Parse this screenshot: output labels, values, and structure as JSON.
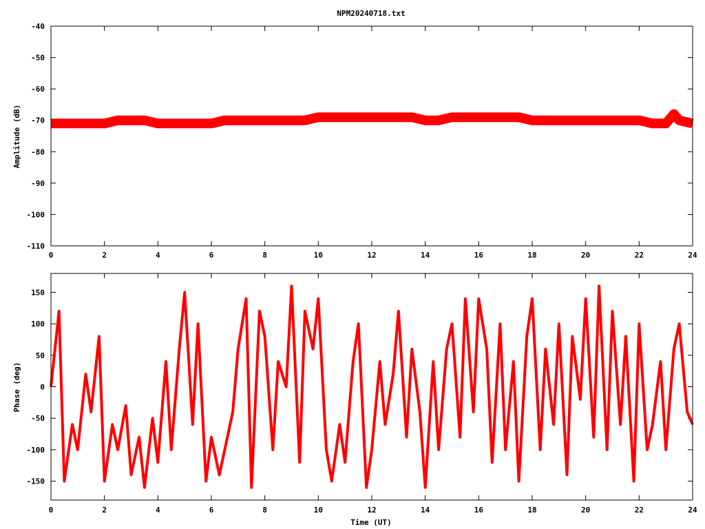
{
  "chart_data": [
    {
      "type": "line",
      "title": "NPM20240718.txt",
      "xlabel": "",
      "ylabel": "Amplitude (dB)",
      "xlim": [
        0,
        24
      ],
      "ylim": [
        -110,
        -40
      ],
      "x_ticks": [
        "0",
        "2",
        "4",
        "6",
        "8",
        "10",
        "12",
        "14",
        "16",
        "18",
        "20",
        "22",
        "24"
      ],
      "y_ticks": [
        "-40",
        "-50",
        "-60",
        "-70",
        "-80",
        "-90",
        "-100",
        "-110"
      ],
      "series_color": "#ff0000",
      "series": [
        {
          "name": "",
          "x": [
            0,
            0.5,
            1,
            1.5,
            2,
            2.5,
            3,
            3.5,
            4,
            4.5,
            5,
            5.5,
            6,
            6.5,
            7,
            7.5,
            8,
            8.5,
            9,
            9.5,
            10,
            10.5,
            11,
            11.5,
            12,
            12.5,
            13,
            13.5,
            14,
            14.5,
            15,
            15.5,
            16,
            16.5,
            17,
            17.5,
            18,
            18.5,
            19,
            19.5,
            20,
            20.5,
            21,
            21.5,
            22,
            22.5,
            23,
            23.3,
            23.5,
            24
          ],
          "y": [
            -71,
            -71,
            -71,
            -71,
            -71,
            -70,
            -70,
            -70,
            -71,
            -71,
            -71,
            -71,
            -71,
            -70,
            -70,
            -70,
            -70,
            -70,
            -70,
            -70,
            -69,
            -69,
            -69,
            -69,
            -69,
            -69,
            -69,
            -69,
            -70,
            -70,
            -69,
            -69,
            -69,
            -69,
            -69,
            -69,
            -70,
            -70,
            -70,
            -70,
            -70,
            -70,
            -70,
            -70,
            -70,
            -71,
            -71,
            -68,
            -70,
            -71
          ]
        }
      ]
    },
    {
      "type": "line",
      "title": "",
      "xlabel": "Time (UT)",
      "ylabel": "Phase (deg)",
      "xlim": [
        0,
        24
      ],
      "ylim": [
        -180,
        180
      ],
      "x_ticks": [
        "0",
        "2",
        "4",
        "6",
        "8",
        "10",
        "12",
        "14",
        "16",
        "18",
        "20",
        "22",
        "24"
      ],
      "y_ticks": [
        "150",
        "100",
        "50",
        "0",
        "-50",
        "-100",
        "-150"
      ],
      "series_color": "#ff0000",
      "series": [
        {
          "name": "",
          "x": [
            0,
            0.3,
            0.5,
            0.8,
            1,
            1.3,
            1.5,
            1.8,
            2,
            2.3,
            2.5,
            2.8,
            3,
            3.3,
            3.5,
            3.8,
            4,
            4.3,
            4.5,
            4.8,
            5,
            5.3,
            5.5,
            5.8,
            6,
            6.3,
            6.5,
            6.8,
            7,
            7.3,
            7.5,
            7.8,
            8,
            8.3,
            8.5,
            8.8,
            9,
            9.3,
            9.5,
            9.8,
            10,
            10.3,
            10.5,
            10.8,
            11,
            11.3,
            11.5,
            11.8,
            12,
            12.3,
            12.5,
            12.8,
            13,
            13.3,
            13.5,
            13.8,
            14,
            14.3,
            14.5,
            14.8,
            15,
            15.3,
            15.5,
            15.8,
            16,
            16.3,
            16.5,
            16.8,
            17,
            17.3,
            17.5,
            17.8,
            18,
            18.3,
            18.5,
            18.8,
            19,
            19.3,
            19.5,
            19.8,
            20,
            20.3,
            20.5,
            20.8,
            21,
            21.3,
            21.5,
            21.8,
            22,
            22.3,
            22.5,
            22.8,
            23,
            23.3,
            23.5,
            23.8,
            24
          ],
          "y": [
            0,
            120,
            -150,
            -60,
            -100,
            20,
            -40,
            80,
            -150,
            -60,
            -100,
            -30,
            -140,
            -80,
            -160,
            -50,
            -120,
            40,
            -100,
            60,
            150,
            -60,
            100,
            -150,
            -80,
            -140,
            -100,
            -40,
            60,
            140,
            -160,
            120,
            80,
            -100,
            40,
            0,
            160,
            -120,
            120,
            60,
            140,
            -100,
            -150,
            -60,
            -120,
            40,
            100,
            -160,
            -100,
            40,
            -60,
            20,
            120,
            -80,
            60,
            -40,
            -160,
            40,
            -100,
            60,
            100,
            -80,
            140,
            -40,
            140,
            60,
            -120,
            100,
            -100,
            40,
            -150,
            80,
            140,
            -100,
            60,
            -60,
            100,
            -140,
            80,
            -20,
            140,
            -80,
            160,
            -100,
            120,
            -60,
            80,
            -150,
            100,
            -100,
            -60,
            40,
            -100,
            60,
            100,
            -40,
            -60
          ]
        }
      ]
    }
  ]
}
